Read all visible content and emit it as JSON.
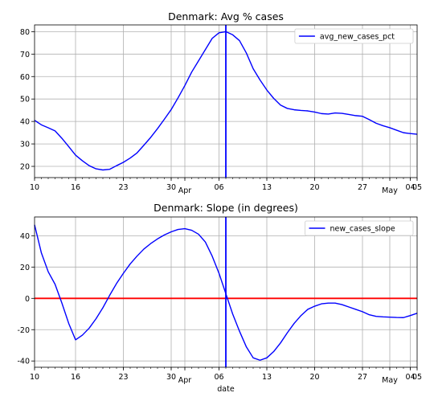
{
  "chart_data": [
    {
      "type": "line",
      "title": "Denmark: Avg % cases",
      "xlabel": "",
      "ylabel": "",
      "xlim": [
        "2020-03-10",
        "2020-05-05"
      ],
      "ylim": [
        15,
        83
      ],
      "yticks": [
        20,
        30,
        40,
        50,
        60,
        70,
        80
      ],
      "xticks": [
        {
          "date": "2020-03-10",
          "label": "10",
          "sub": ""
        },
        {
          "date": "2020-03-16",
          "label": "16",
          "sub": ""
        },
        {
          "date": "2020-03-23",
          "label": "23",
          "sub": ""
        },
        {
          "date": "2020-03-30",
          "label": "30",
          "sub": ""
        },
        {
          "date": "2020-04-01",
          "label": "",
          "sub": "Apr"
        },
        {
          "date": "2020-04-06",
          "label": "06",
          "sub": ""
        },
        {
          "date": "2020-04-13",
          "label": "13",
          "sub": ""
        },
        {
          "date": "2020-04-20",
          "label": "20",
          "sub": ""
        },
        {
          "date": "2020-04-27",
          "label": "27",
          "sub": ""
        },
        {
          "date": "2020-05-01",
          "label": "",
          "sub": "May"
        },
        {
          "date": "2020-05-04",
          "label": "04",
          "sub": ""
        },
        {
          "date": "2020-05-05",
          "label": "05",
          "sub": ""
        }
      ],
      "grid": true,
      "legend": "top-right",
      "vline": {
        "date": "2020-04-07",
        "color": "#0000ff"
      },
      "hline": null,
      "series": [
        {
          "name": "avg_new_cases_pct",
          "color": "#0000ff",
          "x": [
            "2020-03-10",
            "2020-03-11",
            "2020-03-12",
            "2020-03-13",
            "2020-03-14",
            "2020-03-15",
            "2020-03-16",
            "2020-03-17",
            "2020-03-18",
            "2020-03-19",
            "2020-03-20",
            "2020-03-21",
            "2020-03-22",
            "2020-03-23",
            "2020-03-24",
            "2020-03-25",
            "2020-03-26",
            "2020-03-27",
            "2020-03-28",
            "2020-03-29",
            "2020-03-30",
            "2020-03-31",
            "2020-04-01",
            "2020-04-02",
            "2020-04-03",
            "2020-04-04",
            "2020-04-05",
            "2020-04-06",
            "2020-04-07",
            "2020-04-08",
            "2020-04-09",
            "2020-04-10",
            "2020-04-11",
            "2020-04-12",
            "2020-04-13",
            "2020-04-14",
            "2020-04-15",
            "2020-04-16",
            "2020-04-17",
            "2020-04-18",
            "2020-04-19",
            "2020-04-20",
            "2020-04-21",
            "2020-04-22",
            "2020-04-23",
            "2020-04-24",
            "2020-04-25",
            "2020-04-26",
            "2020-04-27",
            "2020-04-28",
            "2020-04-29",
            "2020-04-30",
            "2020-05-01",
            "2020-05-02",
            "2020-05-03",
            "2020-05-04",
            "2020-05-05"
          ],
          "values": [
            40.5,
            38.5,
            37.2,
            35.8,
            32.5,
            28.8,
            25.0,
            22.5,
            20.3,
            18.9,
            18.4,
            18.7,
            20.3,
            21.8,
            23.7,
            26.0,
            29.4,
            32.9,
            36.8,
            41.0,
            45.3,
            50.5,
            56.0,
            62.0,
            67.0,
            72.0,
            77.0,
            79.5,
            80.0,
            78.6,
            76.0,
            70.5,
            63.5,
            58.5,
            54.0,
            50.3,
            47.3,
            45.8,
            45.2,
            44.9,
            44.7,
            44.2,
            43.5,
            43.3,
            43.8,
            43.6,
            43.1,
            42.6,
            42.3,
            40.8,
            39.2,
            38.1,
            37.2,
            36.1,
            35.0,
            34.6,
            34.3
          ]
        }
      ]
    },
    {
      "type": "line",
      "title": "Denmark: Slope (in degrees)",
      "xlabel": "date",
      "ylabel": "",
      "xlim": [
        "2020-03-10",
        "2020-05-05"
      ],
      "ylim": [
        -44,
        52
      ],
      "yticks": [
        -40,
        -20,
        0,
        20,
        40
      ],
      "xticks": [
        {
          "date": "2020-03-10",
          "label": "10",
          "sub": ""
        },
        {
          "date": "2020-03-16",
          "label": "16",
          "sub": ""
        },
        {
          "date": "2020-03-23",
          "label": "23",
          "sub": ""
        },
        {
          "date": "2020-03-30",
          "label": "30",
          "sub": ""
        },
        {
          "date": "2020-04-01",
          "label": "",
          "sub": "Apr"
        },
        {
          "date": "2020-04-06",
          "label": "06",
          "sub": ""
        },
        {
          "date": "2020-04-13",
          "label": "13",
          "sub": ""
        },
        {
          "date": "2020-04-20",
          "label": "20",
          "sub": ""
        },
        {
          "date": "2020-04-27",
          "label": "27",
          "sub": ""
        },
        {
          "date": "2020-05-01",
          "label": "",
          "sub": "May"
        },
        {
          "date": "2020-05-04",
          "label": "04",
          "sub": ""
        },
        {
          "date": "2020-05-05",
          "label": "05",
          "sub": ""
        }
      ],
      "grid": true,
      "legend": "top-right",
      "vline": {
        "date": "2020-04-07",
        "color": "#0000ff"
      },
      "hline": {
        "value": 0,
        "color": "#ff0000"
      },
      "series": [
        {
          "name": "new_cases_slope",
          "color": "#0000ff",
          "x": [
            "2020-03-10",
            "2020-03-11",
            "2020-03-12",
            "2020-03-13",
            "2020-03-14",
            "2020-03-15",
            "2020-03-16",
            "2020-03-17",
            "2020-03-18",
            "2020-03-19",
            "2020-03-20",
            "2020-03-21",
            "2020-03-22",
            "2020-03-23",
            "2020-03-24",
            "2020-03-25",
            "2020-03-26",
            "2020-03-27",
            "2020-03-28",
            "2020-03-29",
            "2020-03-30",
            "2020-03-31",
            "2020-04-01",
            "2020-04-02",
            "2020-04-03",
            "2020-04-04",
            "2020-04-05",
            "2020-04-06",
            "2020-04-07",
            "2020-04-08",
            "2020-04-09",
            "2020-04-10",
            "2020-04-11",
            "2020-04-12",
            "2020-04-13",
            "2020-04-14",
            "2020-04-15",
            "2020-04-16",
            "2020-04-17",
            "2020-04-18",
            "2020-04-19",
            "2020-04-20",
            "2020-04-21",
            "2020-04-22",
            "2020-04-23",
            "2020-04-24",
            "2020-04-25",
            "2020-04-26",
            "2020-04-27",
            "2020-04-28",
            "2020-04-29",
            "2020-04-30",
            "2020-05-01",
            "2020-05-02",
            "2020-05-03",
            "2020-05-04",
            "2020-05-05"
          ],
          "values": [
            47,
            29,
            17,
            9,
            -3,
            -16,
            -26.5,
            -23.5,
            -19,
            -13,
            -6,
            2,
            9.5,
            16,
            22,
            27,
            31.5,
            35,
            38,
            40.5,
            42.5,
            44,
            44.5,
            43.5,
            41,
            36,
            27,
            16,
            3,
            -10,
            -21,
            -31,
            -38,
            -39.5,
            -38,
            -34,
            -28.5,
            -22,
            -16,
            -11,
            -7,
            -5,
            -3.5,
            -3,
            -3,
            -4,
            -5.5,
            -7,
            -8.5,
            -10.5,
            -11.5,
            -11.8,
            -12,
            -12.2,
            -12.3,
            -11,
            -9.5
          ]
        }
      ]
    }
  ]
}
